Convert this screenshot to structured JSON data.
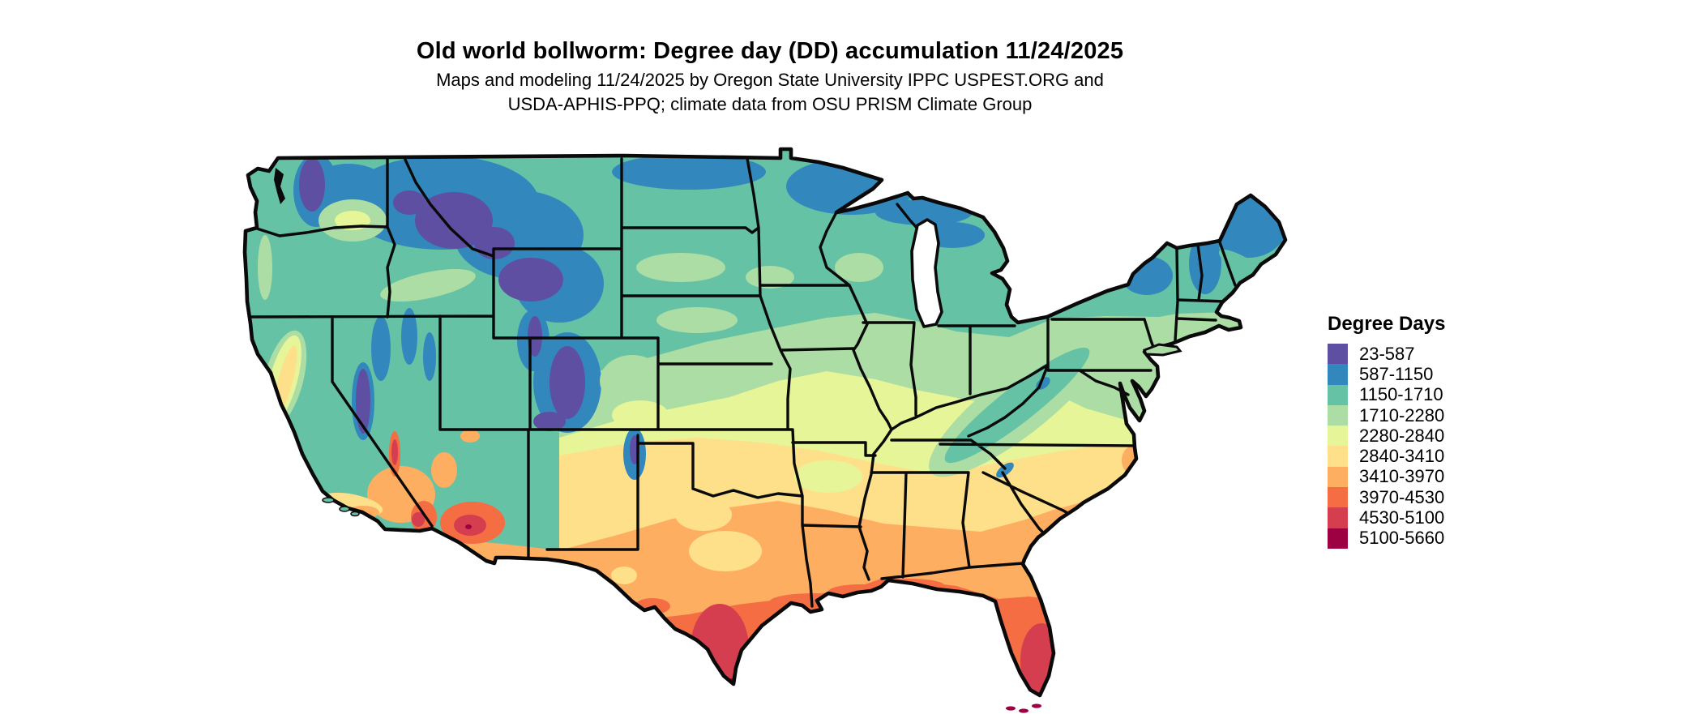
{
  "title": "Old world bollworm: Degree day (DD) accumulation 11/24/2025",
  "subtitle_line1": "Maps and modeling 11/24/2025 by Oregon State University IPPC USPEST.ORG and",
  "subtitle_line2": "USDA-APHIS-PPQ; climate data from OSU PRISM Climate Group",
  "legend": {
    "title": "Degree Days",
    "items": [
      {
        "label": "23-587",
        "color": "#5E4FA2"
      },
      {
        "label": "587-1150",
        "color": "#3288BD"
      },
      {
        "label": "1150-1710",
        "color": "#66C2A5"
      },
      {
        "label": "1710-2280",
        "color": "#ABDDA4"
      },
      {
        "label": "2280-2840",
        "color": "#E6F598"
      },
      {
        "label": "2840-3410",
        "color": "#FEE08B"
      },
      {
        "label": "3410-3970",
        "color": "#FDAE61"
      },
      {
        "label": "3970-4530",
        "color": "#F46D43"
      },
      {
        "label": "4530-5100",
        "color": "#D53E4F"
      },
      {
        "label": "5100-5660",
        "color": "#9E0142"
      }
    ]
  },
  "map": {
    "type": "choropleth raster with state borders",
    "region": "Continental United States",
    "units": "accumulated degree days (DD)",
    "date_shown": "11/24/2025",
    "coolest_areas": "Rocky Mountains, Cascades, Sierra Nevada, northern Minnesota, northern Maine (23-1150 DD)",
    "warmest_areas": "southern Texas, southern Florida and Keys, southern Arizona deserts (4530-5660 DD)"
  }
}
